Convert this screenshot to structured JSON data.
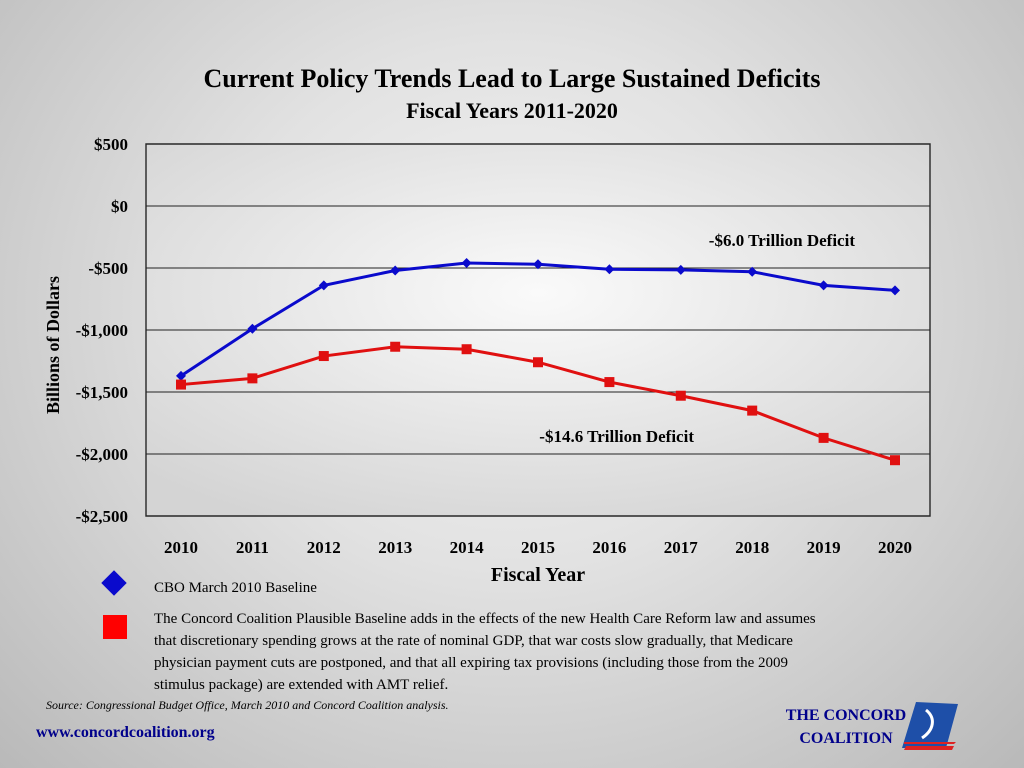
{
  "chart_data": {
    "type": "line",
    "title": "Current Policy Trends Lead to Large Sustained Deficits",
    "subtitle": "Fiscal Years 2011-2020",
    "xlabel": "Fiscal Year",
    "ylabel": "Billions of Dollars",
    "ylim": [
      -2500,
      500
    ],
    "yticks": [
      500,
      0,
      -500,
      -1000,
      -1500,
      -2000,
      -2500
    ],
    "ytick_labels": [
      "$500",
      "$0",
      "-$500",
      "-$1,000",
      "-$1,500",
      "-$2,000",
      "-$2,500"
    ],
    "categories": [
      "2010",
      "2011",
      "2012",
      "2013",
      "2014",
      "2015",
      "2016",
      "2017",
      "2018",
      "2019",
      "2020"
    ],
    "grid": true,
    "series": [
      {
        "name": "CBO March 2010 Baseline",
        "color": "#0a0acc",
        "marker": "diamond",
        "values": [
          -1370,
          -990,
          -640,
          -520,
          -460,
          -470,
          -510,
          -515,
          -530,
          -640,
          -680
        ]
      },
      {
        "name": "The Concord Coalition Plausible Baseline adds in the effects of the new Health Care Reform law and assumes that discretionary spending grows at the rate of nominal GDP, that war costs slow gradually, that Medicare physician payment cuts are postponed, and that all expiring tax provisions (including those from the 2009 stimulus package) are extended with AMT relief.",
        "color": "#e01010",
        "marker": "square",
        "values": [
          -1440,
          -1390,
          -1210,
          -1135,
          -1155,
          -1260,
          -1420,
          -1530,
          -1650,
          -1870,
          -2050
        ]
      }
    ],
    "annotations": [
      {
        "text": "-$6.0 Trillion Deficit"
      },
      {
        "text": "-$14.6 Trillion Deficit"
      }
    ]
  },
  "source": "Source:  Congressional Budget Office, March 2010 and Concord Coalition analysis.",
  "url": "www.concordcoalition.org",
  "logo": {
    "line1": "THE CONCORD",
    "line2": "COALITION"
  }
}
